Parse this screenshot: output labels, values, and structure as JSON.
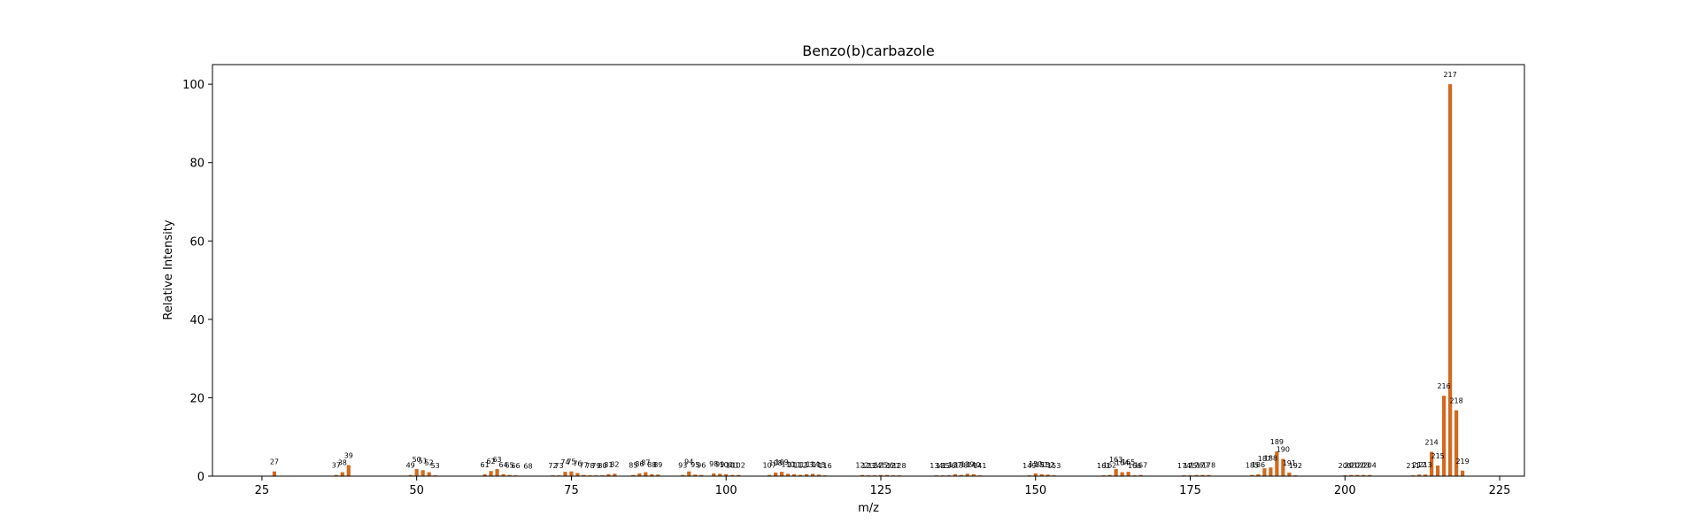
{
  "chart_data": {
    "type": "bar",
    "title": "Benzo(b)carbazole",
    "xlabel": "m/z",
    "ylabel": "Relative Intensity",
    "xlim": [
      17,
      229
    ],
    "ylim": [
      0,
      105
    ],
    "xticks": [
      25,
      50,
      75,
      100,
      125,
      150,
      175,
      200,
      225
    ],
    "yticks": [
      0,
      20,
      40,
      60,
      80,
      100
    ],
    "bar_color": "#D2691E",
    "grid": false,
    "peaks": [
      {
        "mz": 27,
        "intensity": 1.2
      },
      {
        "mz": 37,
        "intensity": 0.3
      },
      {
        "mz": 38,
        "intensity": 1.0
      },
      {
        "mz": 39,
        "intensity": 2.8
      },
      {
        "mz": 49,
        "intensity": 0.3
      },
      {
        "mz": 50,
        "intensity": 1.8
      },
      {
        "mz": 51,
        "intensity": 1.5
      },
      {
        "mz": 52,
        "intensity": 1.0
      },
      {
        "mz": 53,
        "intensity": 0.2
      },
      {
        "mz": 61,
        "intensity": 0.5
      },
      {
        "mz": 62,
        "intensity": 1.3
      },
      {
        "mz": 63,
        "intensity": 1.8
      },
      {
        "mz": 64,
        "intensity": 0.5
      },
      {
        "mz": 65,
        "intensity": 0.3
      },
      {
        "mz": 66,
        "intensity": 0.2
      },
      {
        "mz": 68,
        "intensity": 0.1
      },
      {
        "mz": 72,
        "intensity": 0.2
      },
      {
        "mz": 73,
        "intensity": 0.2
      },
      {
        "mz": 74,
        "intensity": 1.1
      },
      {
        "mz": 75,
        "intensity": 1.2
      },
      {
        "mz": 76,
        "intensity": 0.8
      },
      {
        "mz": 77,
        "intensity": 0.3
      },
      {
        "mz": 78,
        "intensity": 0.2
      },
      {
        "mz": 79,
        "intensity": 0.2
      },
      {
        "mz": 80,
        "intensity": 0.2
      },
      {
        "mz": 81,
        "intensity": 0.5
      },
      {
        "mz": 82,
        "intensity": 0.6
      },
      {
        "mz": 85,
        "intensity": 0.3
      },
      {
        "mz": 86,
        "intensity": 0.7
      },
      {
        "mz": 87,
        "intensity": 1.0
      },
      {
        "mz": 88,
        "intensity": 0.5
      },
      {
        "mz": 89,
        "intensity": 0.4
      },
      {
        "mz": 93,
        "intensity": 0.3
      },
      {
        "mz": 94,
        "intensity": 1.2
      },
      {
        "mz": 95,
        "intensity": 0.4
      },
      {
        "mz": 96,
        "intensity": 0.3
      },
      {
        "mz": 98,
        "intensity": 0.7
      },
      {
        "mz": 99,
        "intensity": 0.6
      },
      {
        "mz": 100,
        "intensity": 0.5
      },
      {
        "mz": 101,
        "intensity": 0.3
      },
      {
        "mz": 102,
        "intensity": 0.3
      },
      {
        "mz": 107,
        "intensity": 0.3
      },
      {
        "mz": 108,
        "intensity": 0.9
      },
      {
        "mz": 109,
        "intensity": 1.1
      },
      {
        "mz": 110,
        "intensity": 0.6
      },
      {
        "mz": 111,
        "intensity": 0.5
      },
      {
        "mz": 112,
        "intensity": 0.3
      },
      {
        "mz": 113,
        "intensity": 0.5
      },
      {
        "mz": 114,
        "intensity": 0.6
      },
      {
        "mz": 115,
        "intensity": 0.4
      },
      {
        "mz": 116,
        "intensity": 0.2
      },
      {
        "mz": 122,
        "intensity": 0.3
      },
      {
        "mz": 123,
        "intensity": 0.2
      },
      {
        "mz": 124,
        "intensity": 0.2
      },
      {
        "mz": 125,
        "intensity": 0.3
      },
      {
        "mz": 126,
        "intensity": 0.3
      },
      {
        "mz": 127,
        "intensity": 0.2
      },
      {
        "mz": 128,
        "intensity": 0.2
      },
      {
        "mz": 134,
        "intensity": 0.2
      },
      {
        "mz": 135,
        "intensity": 0.2
      },
      {
        "mz": 136,
        "intensity": 0.2
      },
      {
        "mz": 137,
        "intensity": 0.5
      },
      {
        "mz": 138,
        "intensity": 0.3
      },
      {
        "mz": 139,
        "intensity": 0.6
      },
      {
        "mz": 140,
        "intensity": 0.5
      },
      {
        "mz": 141,
        "intensity": 0.2
      },
      {
        "mz": 149,
        "intensity": 0.2
      },
      {
        "mz": 150,
        "intensity": 0.7
      },
      {
        "mz": 151,
        "intensity": 0.5
      },
      {
        "mz": 152,
        "intensity": 0.4
      },
      {
        "mz": 153,
        "intensity": 0.2
      },
      {
        "mz": 161,
        "intensity": 0.2
      },
      {
        "mz": 162,
        "intensity": 0.3
      },
      {
        "mz": 163,
        "intensity": 1.8
      },
      {
        "mz": 164,
        "intensity": 1.0
      },
      {
        "mz": 165,
        "intensity": 1.1
      },
      {
        "mz": 166,
        "intensity": 0.2
      },
      {
        "mz": 167,
        "intensity": 0.3
      },
      {
        "mz": 174,
        "intensity": 0.2
      },
      {
        "mz": 175,
        "intensity": 0.2
      },
      {
        "mz": 176,
        "intensity": 0.3
      },
      {
        "mz": 177,
        "intensity": 0.3
      },
      {
        "mz": 178,
        "intensity": 0.3
      },
      {
        "mz": 185,
        "intensity": 0.3
      },
      {
        "mz": 186,
        "intensity": 0.5
      },
      {
        "mz": 187,
        "intensity": 2.0
      },
      {
        "mz": 188,
        "intensity": 2.2
      },
      {
        "mz": 189,
        "intensity": 6.3
      },
      {
        "mz": 190,
        "intensity": 4.4
      },
      {
        "mz": 191,
        "intensity": 0.9
      },
      {
        "mz": 192,
        "intensity": 0.2
      },
      {
        "mz": 200,
        "intensity": 0.2
      },
      {
        "mz": 201,
        "intensity": 0.3
      },
      {
        "mz": 202,
        "intensity": 0.3
      },
      {
        "mz": 203,
        "intensity": 0.3
      },
      {
        "mz": 204,
        "intensity": 0.3
      },
      {
        "mz": 211,
        "intensity": 0.2
      },
      {
        "mz": 212,
        "intensity": 0.4
      },
      {
        "mz": 213,
        "intensity": 0.4
      },
      {
        "mz": 214,
        "intensity": 6.2
      },
      {
        "mz": 215,
        "intensity": 2.7
      },
      {
        "mz": 216,
        "intensity": 20.5
      },
      {
        "mz": 217,
        "intensity": 100
      },
      {
        "mz": 218,
        "intensity": 16.8
      },
      {
        "mz": 219,
        "intensity": 1.4
      }
    ]
  }
}
